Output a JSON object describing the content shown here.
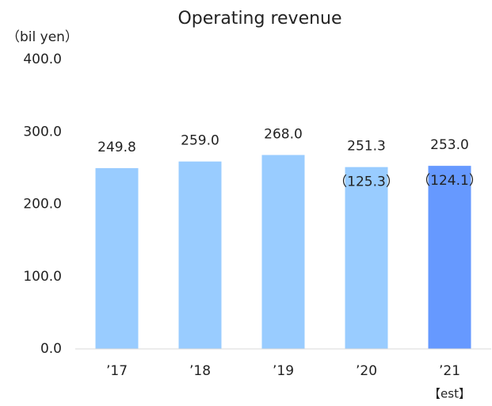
{
  "chart_data": {
    "type": "bar",
    "title": "Operating revenue",
    "y_label": "（bil yen）",
    "categories": [
      "’17",
      "’18",
      "’19",
      "’20",
      "’21"
    ],
    "category_notes": [
      null,
      null,
      null,
      null,
      "【est】"
    ],
    "values": [
      249.8,
      259.0,
      268.0,
      251.3,
      253.0
    ],
    "value_labels": [
      "249.8",
      "259.0",
      "268.0",
      "251.3",
      "253.0"
    ],
    "annotations": [
      null,
      null,
      null,
      "（125.3）",
      "（124.1）"
    ],
    "colors": [
      "#99ccff",
      "#99ccff",
      "#99ccff",
      "#99ccff",
      "#6699ff"
    ],
    "ylim": [
      0,
      400
    ],
    "yticks": [
      {
        "value": 0,
        "label": "0.0"
      },
      {
        "value": 100,
        "label": "100.0"
      },
      {
        "value": 200,
        "label": "200.0"
      },
      {
        "value": 300,
        "label": "300.0"
      },
      {
        "value": 400,
        "label": "400.0"
      }
    ],
    "grid": false
  }
}
